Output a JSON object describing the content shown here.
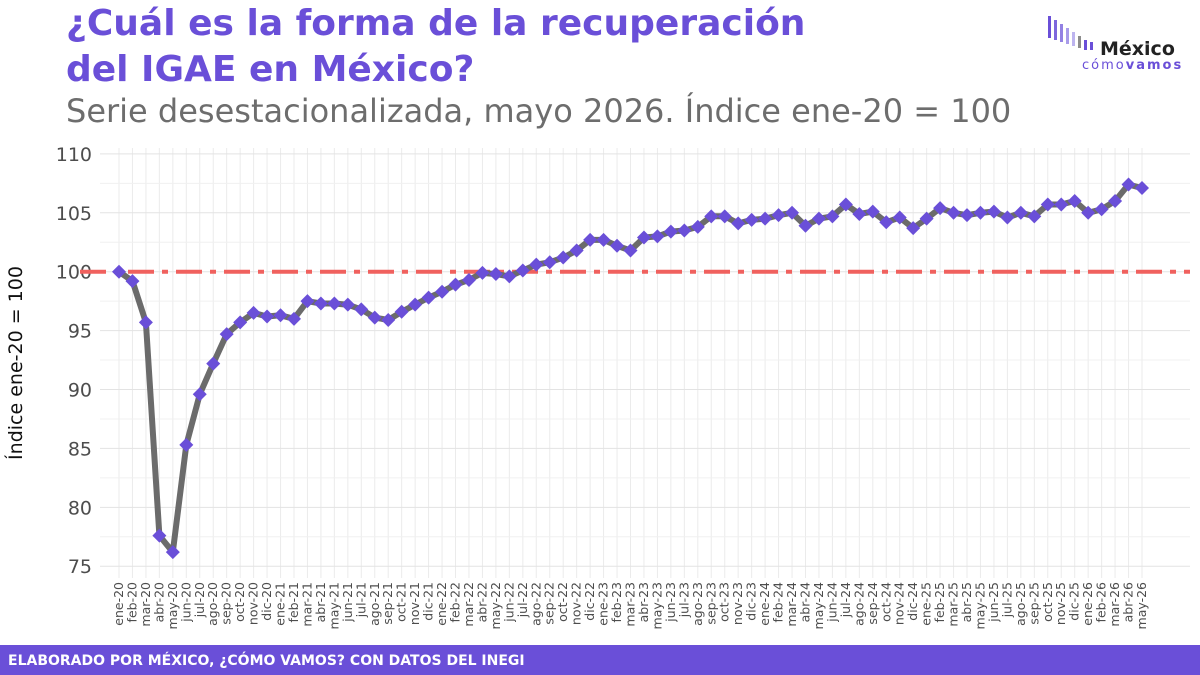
{
  "title_line1": "¿Cuál es la forma de la recuperación",
  "title_line2": "del IGAE en México?",
  "subtitle": "Serie desestacionalizada, mayo 2026. Índice ene-20 = 100",
  "logo": {
    "name": "México",
    "tag_light": "cómo",
    "tag_bold": "vamos"
  },
  "footer": "ELABORADO POR MÉXICO, ¿CÓMO VAMOS? CON DATOS DEL INEGI",
  "colors": {
    "accent": "#6a4fd8",
    "line": "#6b6b6b",
    "marker": "#6a4fd8",
    "reference": "#f0615e",
    "subtitle": "#6d6d6d"
  },
  "chart_data": {
    "type": "line",
    "ylabel": "Índice ene-20 = 100",
    "xlabel": "",
    "ylim": [
      74,
      110.5
    ],
    "yticks": [
      75,
      80,
      85,
      90,
      95,
      100,
      105,
      110
    ],
    "grid": true,
    "reference_line": 100,
    "categories": [
      "ene-20",
      "feb-20",
      "mar-20",
      "abr-20",
      "may-20",
      "jun-20",
      "jul-20",
      "ago-20",
      "sep-20",
      "oct-20",
      "nov-20",
      "dic-20",
      "ene-21",
      "feb-21",
      "mar-21",
      "abr-21",
      "may-21",
      "jun-21",
      "jul-21",
      "ago-21",
      "sep-21",
      "oct-21",
      "nov-21",
      "dic-21",
      "ene-22",
      "feb-22",
      "mar-22",
      "abr-22",
      "may-22",
      "jun-22",
      "jul-22",
      "ago-22",
      "sep-22",
      "oct-22",
      "nov-22",
      "dic-22",
      "ene-23",
      "feb-23",
      "mar-23",
      "abr-23",
      "may-23",
      "jun-23",
      "jul-23",
      "ago-23",
      "sep-23",
      "oct-23",
      "nov-23",
      "dic-23",
      "ene-24",
      "feb-24",
      "mar-24",
      "abr-24",
      "may-24",
      "jun-24",
      "jul-24",
      "ago-24",
      "sep-24",
      "oct-24",
      "nov-24",
      "dic-24",
      "ene-25",
      "feb-25",
      "mar-25",
      "abr-25",
      "may-25",
      "jun-25",
      "jul-25",
      "ago-25",
      "sep-25",
      "oct-25",
      "nov-25",
      "dic-25",
      "ene-26",
      "feb-26",
      "mar-26",
      "abr-26",
      "may-26"
    ],
    "values": [
      100.0,
      99.2,
      95.7,
      77.6,
      76.2,
      85.3,
      89.6,
      92.2,
      94.7,
      95.7,
      96.5,
      96.2,
      96.3,
      96.0,
      97.5,
      97.3,
      97.3,
      97.2,
      96.8,
      96.1,
      95.9,
      96.6,
      97.2,
      97.8,
      98.3,
      98.9,
      99.3,
      99.9,
      99.8,
      99.6,
      100.1,
      100.6,
      100.8,
      101.2,
      101.8,
      102.7,
      102.7,
      102.2,
      101.8,
      102.9,
      103.0,
      103.4,
      103.5,
      103.8,
      104.7,
      104.7,
      104.1,
      104.4,
      104.5,
      104.8,
      105.0,
      103.9,
      104.5,
      104.7,
      105.7,
      104.9,
      105.1,
      104.2,
      104.6,
      103.7,
      104.5,
      105.4,
      105.0,
      104.8,
      105.0,
      105.1,
      104.6,
      105.0,
      104.7,
      105.7,
      105.7,
      106.0,
      105.0,
      105.3,
      106.0,
      107.4,
      107.1
    ]
  }
}
